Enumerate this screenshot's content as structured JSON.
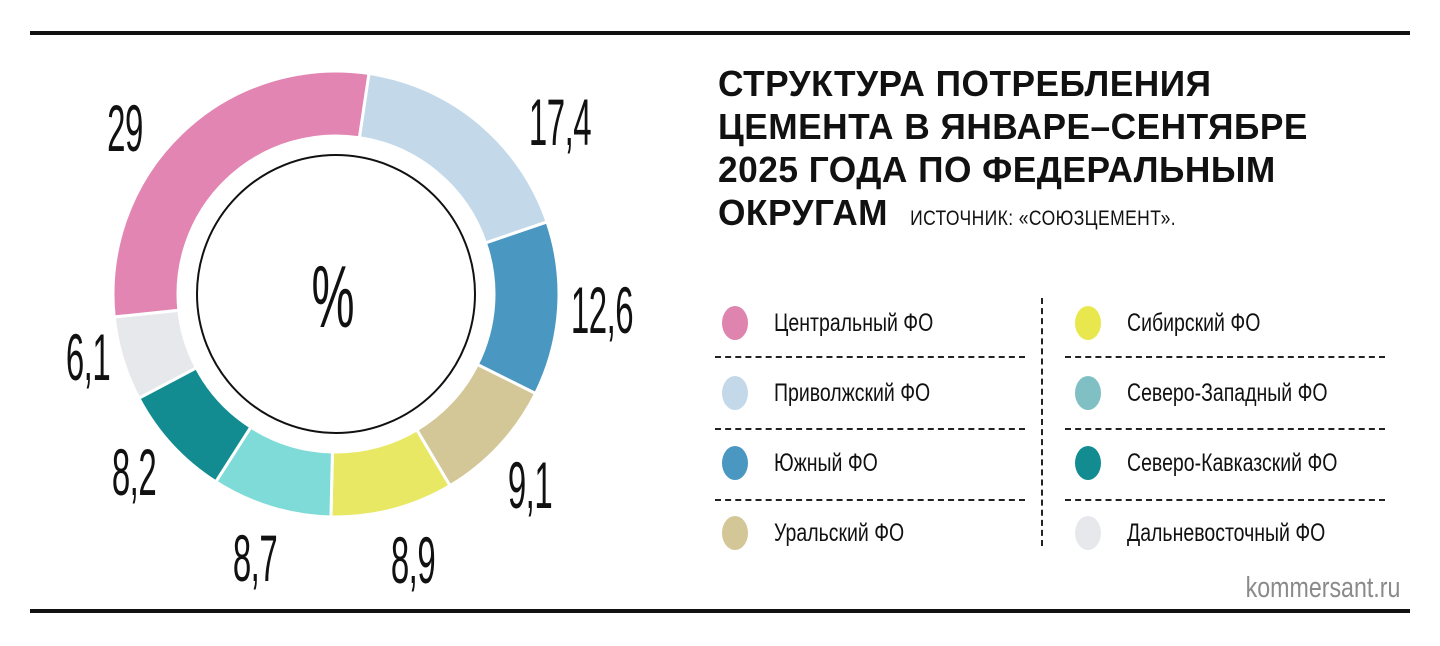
{
  "chart_data": {
    "type": "pie",
    "variant": "donut",
    "title": "СТРУКТУРА ПОТРЕБЛЕНИЯ ЦЕМЕНТА В ЯНВАРЕ–СЕНТЯБРЕ 2025 ГОДА ПО ФЕДЕРАЛЬНЫМ ОКРУГАМ",
    "title_lines": [
      "СТРУКТУРА ПОТРЕБЛЕНИЯ",
      "ЦЕМЕНТА В ЯНВАРЕ–СЕНТЯБРЕ",
      "2025 ГОДА ПО ФЕДЕРАЛЬНЫМ",
      "ОКРУГАМ"
    ],
    "source": "ИСТОЧНИК: «СОЮЗЦЕМЕНТ».",
    "center_label": "%",
    "unit": "%",
    "legend_position": "right",
    "series": [
      {
        "name": "Центральный ФО",
        "value": 29,
        "label": "29",
        "color": "#e285b2",
        "legend_color": "#de84ae"
      },
      {
        "name": "Приволжский ФО",
        "value": 17.4,
        "label": "17,4",
        "color": "#c3d9ea",
        "legend_color": "#c3d9ea"
      },
      {
        "name": "Южный ФО",
        "value": 12.6,
        "label": "12,6",
        "color": "#4a97c2",
        "legend_color": "#4a97c2"
      },
      {
        "name": "Уральский ФО",
        "value": 9.1,
        "label": "9,1",
        "color": "#d3c697",
        "legend_color": "#d3c697"
      },
      {
        "name": "Сибирский ФО",
        "value": 8.9,
        "label": "8,9",
        "color": "#e8e864",
        "legend_color": "#e8e84e"
      },
      {
        "name": "Северо-Западный ФО",
        "value": 8.7,
        "label": "8,7",
        "color": "#7fdbd8",
        "legend_color": "#80c0c4"
      },
      {
        "name": "Северо-Кавказский ФО",
        "value": 8.2,
        "label": "8,2",
        "color": "#128c90",
        "legend_color": "#128c90"
      },
      {
        "name": "Дальневосточный ФО",
        "value": 6.1,
        "label": "6,1",
        "color": "#e6e8ec",
        "legend_color": "#e6e8ec"
      }
    ],
    "legend_order": [
      [
        "Центральный ФО",
        "Приволжский ФО",
        "Южный ФО",
        "Уральский ФО"
      ],
      [
        "Сибирский ФО",
        "Северо-Западный ФО",
        "Северо-Кавказский ФО",
        "Дальневосточный ФО"
      ]
    ]
  },
  "brand": "kommersant.ru"
}
